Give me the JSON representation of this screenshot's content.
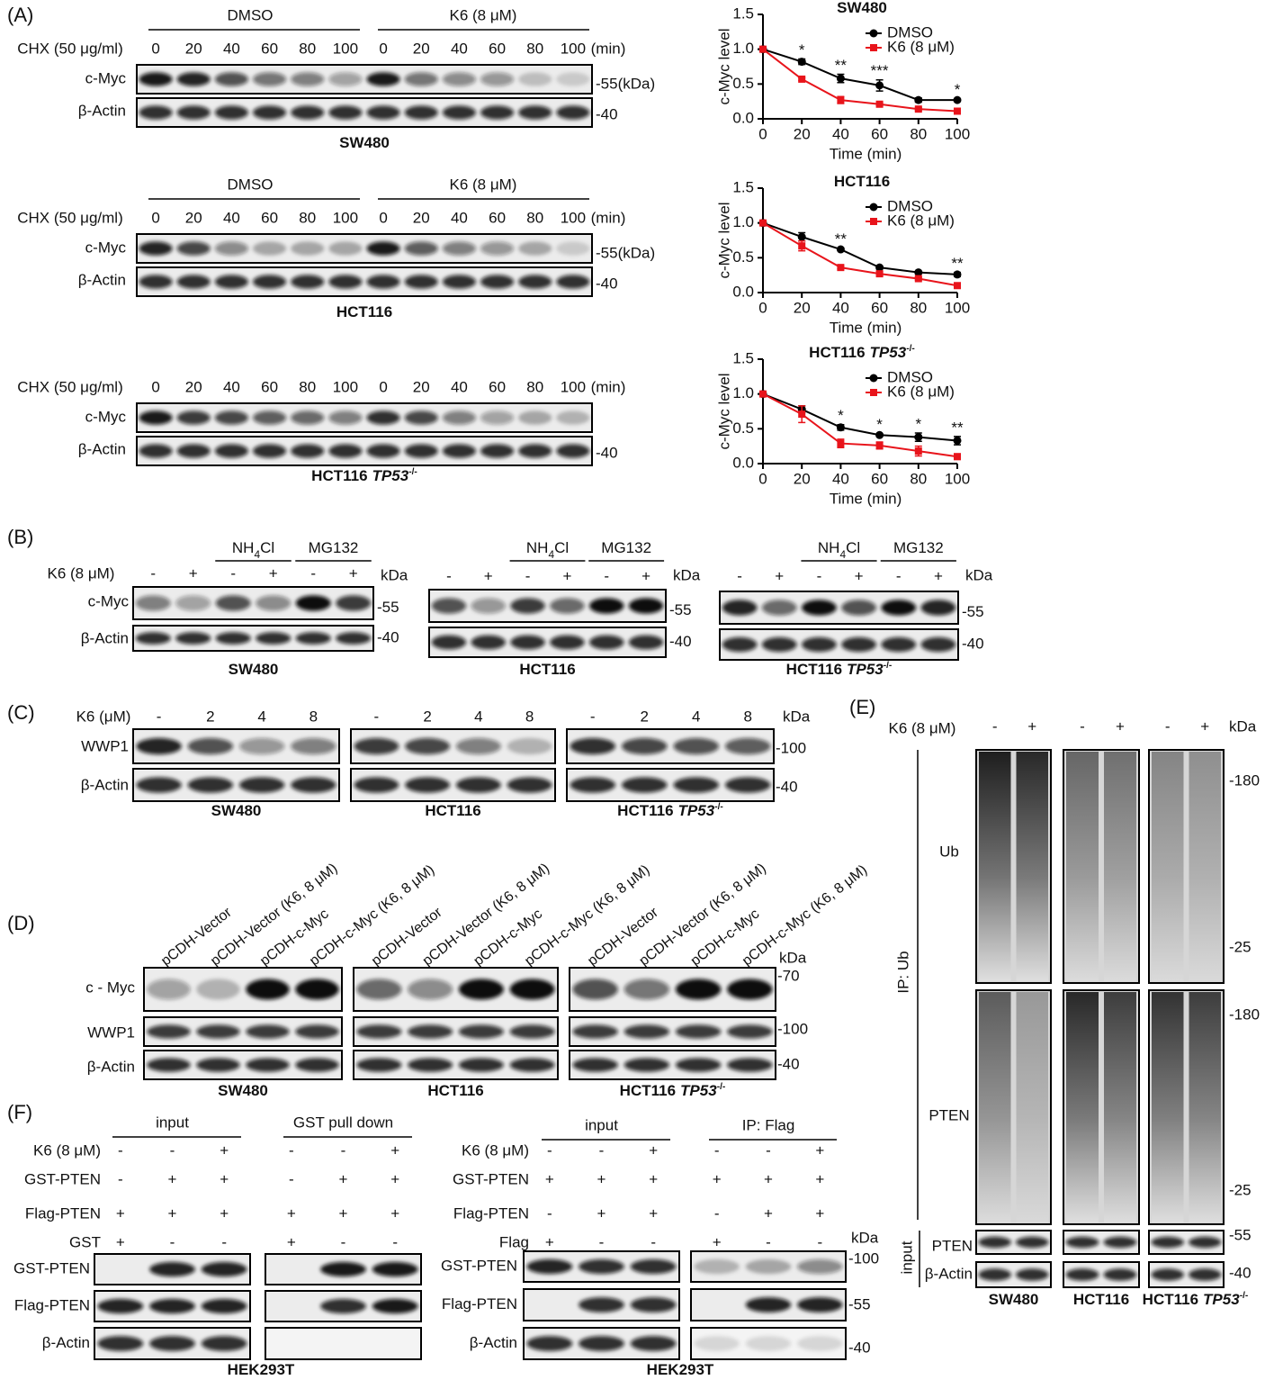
{
  "panel_a": {
    "label": "(A)",
    "blots": [
      {
        "groups": [
          "DMSO",
          "K6 (8 μM)"
        ],
        "treatment": "CHX (50 μg/ml)",
        "lanes": [
          "0",
          "20",
          "40",
          "60",
          "80",
          "100",
          "0",
          "20",
          "40",
          "60",
          "80",
          "100"
        ],
        "unit": "(min)",
        "rows": [
          "c-Myc",
          "β-Actin"
        ],
        "markers": [
          "-55(kDa)",
          "-40"
        ],
        "cell_line": {
          "text": "SW480"
        }
      },
      {
        "groups": [
          "DMSO",
          "K6 (8 μM)"
        ],
        "treatment": "CHX (50 μg/ml)",
        "lanes": [
          "0",
          "20",
          "40",
          "60",
          "80",
          "100",
          "0",
          "20",
          "40",
          "60",
          "80",
          "100"
        ],
        "unit": "(min)",
        "rows": [
          "c-Myc",
          "β-Actin"
        ],
        "markers": [
          "-55(kDa)",
          "-40"
        ],
        "cell_line": {
          "text": "HCT116"
        }
      },
      {
        "treatment": "CHX (50 μg/ml)",
        "lanes": [
          "0",
          "20",
          "40",
          "60",
          "80",
          "100",
          "0",
          "20",
          "40",
          "60",
          "80",
          "100"
        ],
        "unit": "(min)",
        "rows": [
          "c-Myc",
          "β-Actin"
        ],
        "markers": [
          "-40"
        ],
        "cell_line": {
          "text": "HCT116",
          "gene": "TP53",
          "sup": "-/-"
        }
      }
    ]
  },
  "chart_data": [
    {
      "type": "line",
      "title": "SW480",
      "x": [
        0,
        20,
        40,
        60,
        80,
        100
      ],
      "xlim": [
        0,
        100
      ],
      "xticks": [
        0,
        20,
        40,
        60,
        80,
        100
      ],
      "ylim": [
        0,
        1.5
      ],
      "yticks": [
        {
          "value": 0,
          "label": "0.0"
        },
        {
          "value": 0.5,
          "label": "0.5"
        },
        {
          "value": 1,
          "label": "1.0"
        },
        {
          "value": 1.5,
          "label": "1.5"
        }
      ],
      "xlabel": "Time (min)",
      "ylabel": "c-Myc level",
      "series": [
        {
          "name": "DMSO",
          "color": "#000000",
          "values": [
            1.0,
            0.82,
            0.58,
            0.48,
            0.27,
            0.27
          ],
          "errors": [
            0,
            0.04,
            0.06,
            0.08,
            0.03,
            0.02
          ]
        },
        {
          "name": "K6 (8 μM)",
          "color": "#e8141b",
          "values": [
            1.0,
            0.57,
            0.27,
            0.21,
            0.14,
            0.11
          ],
          "errors": [
            0,
            0.02,
            0.05,
            0.02,
            0.02,
            0.01
          ]
        }
      ],
      "annotations": [
        {
          "x": 20,
          "text": "*"
        },
        {
          "x": 40,
          "text": "**"
        },
        {
          "x": 60,
          "text": "***"
        },
        {
          "x": 100,
          "text": "*"
        }
      ]
    },
    {
      "type": "line",
      "title": "HCT116",
      "x": [
        0,
        20,
        40,
        60,
        80,
        100
      ],
      "xlim": [
        0,
        100
      ],
      "xticks": [
        0,
        20,
        40,
        60,
        80,
        100
      ],
      "ylim": [
        0,
        1.5
      ],
      "yticks": [
        {
          "value": 0,
          "label": "0.0"
        },
        {
          "value": 0.5,
          "label": "0.5"
        },
        {
          "value": 1,
          "label": "1.0"
        },
        {
          "value": 1.5,
          "label": "1.5"
        }
      ],
      "xlabel": "Time (min)",
      "ylabel": "c-Myc level",
      "series": [
        {
          "name": "DMSO",
          "color": "#000000",
          "values": [
            1.0,
            0.8,
            0.62,
            0.36,
            0.29,
            0.26
          ],
          "errors": [
            0,
            0.06,
            0.02,
            0.02,
            0.01,
            0.03
          ]
        },
        {
          "name": "K6 (8 μM)",
          "color": "#e8141b",
          "values": [
            1.0,
            0.67,
            0.36,
            0.27,
            0.2,
            0.1
          ],
          "errors": [
            0,
            0.07,
            0.02,
            0.03,
            0.02,
            0.01
          ]
        }
      ],
      "annotations": [
        {
          "x": 40,
          "text": "**"
        },
        {
          "x": 100,
          "text": "**"
        }
      ]
    },
    {
      "type": "line",
      "title": "HCT116",
      "title_gene": "TP53",
      "title_sup": "-/-",
      "x": [
        0,
        20,
        40,
        60,
        80,
        100
      ],
      "xlim": [
        0,
        100
      ],
      "xticks": [
        0,
        20,
        40,
        60,
        80,
        100
      ],
      "ylim": [
        0,
        1.5
      ],
      "yticks": [
        {
          "value": 0,
          "label": "0.0"
        },
        {
          "value": 0.5,
          "label": "0.5"
        },
        {
          "value": 1,
          "label": "1.0"
        },
        {
          "value": 1.5,
          "label": "1.5"
        }
      ],
      "xlabel": "Time (min)",
      "ylabel": "c-Myc level",
      "series": [
        {
          "name": "DMSO",
          "color": "#000000",
          "values": [
            1.0,
            0.78,
            0.52,
            0.41,
            0.38,
            0.33
          ],
          "errors": [
            0,
            0.05,
            0.04,
            0.02,
            0.06,
            0.06
          ]
        },
        {
          "name": "K6 (8 μM)",
          "color": "#e8141b",
          "values": [
            1.0,
            0.71,
            0.29,
            0.26,
            0.18,
            0.1
          ],
          "errors": [
            0,
            0.12,
            0.06,
            0.05,
            0.07,
            0.04
          ]
        }
      ],
      "annotations": [
        {
          "x": 40,
          "text": "*"
        },
        {
          "x": 60,
          "text": "*"
        },
        {
          "x": 80,
          "text": "*"
        },
        {
          "x": 100,
          "text": "**"
        }
      ]
    }
  ],
  "panel_b": {
    "label": "(B)",
    "treatment": "K6 (8 μM)",
    "rows": [
      "c-Myc",
      "β-Actin"
    ],
    "blots": [
      {
        "groups": [
          {
            "text": "NH",
            "sub": "4",
            "tail": "Cl"
          },
          {
            "text": "MG132"
          }
        ],
        "lanes": [
          "-",
          "+",
          "-",
          "+",
          "-",
          "+"
        ],
        "kda": "kDa",
        "markers": [
          "-55",
          "-40"
        ],
        "cell_line": {
          "text": "SW480"
        }
      },
      {
        "groups": [
          {
            "text": "NH",
            "sub": "4",
            "tail": "Cl"
          },
          {
            "text": "MG132"
          }
        ],
        "lanes": [
          "-",
          "+",
          "-",
          "+",
          "-",
          "+"
        ],
        "kda": "kDa",
        "markers": [
          "-55",
          "-40"
        ],
        "cell_line": {
          "text": "HCT116"
        }
      },
      {
        "groups": [
          {
            "text": "NH",
            "sub": "4",
            "tail": "Cl"
          },
          {
            "text": "MG132"
          }
        ],
        "lanes": [
          "-",
          "+",
          "-",
          "+",
          "-",
          "+"
        ],
        "kda": "kDa",
        "markers": [
          "-55",
          "-40"
        ],
        "cell_line": {
          "text": "HCT116",
          "gene": "TP53",
          "sup": "-/-"
        }
      }
    ]
  },
  "panel_c": {
    "label": "(C)",
    "treatment": "K6 (μM)",
    "kda": "kDa",
    "rows": [
      "WWP1",
      "β-Actin"
    ],
    "markers": [
      "-100",
      "-40"
    ],
    "blots": [
      {
        "lanes": [
          "-",
          "2",
          "4",
          "8"
        ],
        "cell_line": {
          "text": "SW480"
        }
      },
      {
        "lanes": [
          "-",
          "2",
          "4",
          "8"
        ],
        "cell_line": {
          "text": "HCT116"
        }
      },
      {
        "lanes": [
          "-",
          "2",
          "4",
          "8"
        ],
        "cell_line": {
          "text": "HCT116",
          "gene": "TP53",
          "sup": "-/-"
        }
      }
    ]
  },
  "panel_d": {
    "label": "(D)",
    "kda": "kDa",
    "rows": [
      "c - Myc",
      "WWP1",
      "β-Actin"
    ],
    "markers": [
      "-70",
      "-100",
      "-40"
    ],
    "blots": [
      {
        "lanes": [
          "pCDH-Vector",
          "pCDH-Vector (K6, 8 μM)",
          "pCDH-c-Myc",
          "pCDH-c-Myc (K6, 8 μM)"
        ],
        "cell_line": {
          "text": "SW480"
        }
      },
      {
        "lanes": [
          "pCDH-Vector",
          "pCDH-Vector (K6, 8 μM)",
          "pCDH-c-Myc",
          "pCDH-c-Myc (K6, 8 μM)"
        ],
        "cell_line": {
          "text": "HCT116"
        }
      },
      {
        "lanes": [
          "pCDH-Vector",
          "pCDH-Vector (K6, 8 μM)",
          "pCDH-c-Myc",
          "pCDH-c-Myc (K6, 8 μM)"
        ],
        "cell_line": {
          "text": "HCT116",
          "gene": "TP53",
          "sup": "-/-"
        }
      }
    ]
  },
  "panel_e": {
    "label": "(E)",
    "treatment": "K6 (8 μM)",
    "kda": "kDa",
    "ip": "IP: Ub",
    "ip_rows": [
      "Ub",
      "PTEN"
    ],
    "input": "input",
    "input_rows": [
      "PTEN",
      "β-Actin"
    ],
    "markers": [
      "-180",
      "-25",
      "-180",
      "-25",
      "-55",
      "-40"
    ],
    "blots": [
      {
        "lanes": [
          "-",
          "+"
        ],
        "cell_line": {
          "text": "SW480"
        }
      },
      {
        "lanes": [
          "-",
          "+"
        ],
        "cell_line": {
          "text": "HCT116"
        }
      },
      {
        "lanes": [
          "-",
          "+"
        ],
        "cell_line": {
          "text": "HCT116",
          "gene": "TP53",
          "sup": "-/-"
        }
      }
    ]
  },
  "panel_f": {
    "label": "(F)",
    "left": {
      "groups": [
        "input",
        "GST pull down"
      ],
      "conditions": [
        {
          "name": "K6 (8 μM)",
          "signs": [
            "-",
            "-",
            "+",
            "-",
            "-",
            "+"
          ]
        },
        {
          "name": "GST-PTEN",
          "signs": [
            "-",
            "+",
            "+",
            "-",
            "+",
            "+"
          ]
        },
        {
          "name": "Flag-PTEN",
          "signs": [
            "+",
            "+",
            "+",
            "+",
            "+",
            "+"
          ]
        },
        {
          "name": "GST",
          "signs": [
            "+",
            "-",
            "-",
            "+",
            "-",
            "-"
          ]
        }
      ],
      "rows": [
        "GST-PTEN",
        "Flag-PTEN",
        "β-Actin"
      ],
      "cell_line": {
        "text": "HEK293T"
      }
    },
    "right": {
      "groups": [
        "input",
        "IP: Flag"
      ],
      "conditions": [
        {
          "name": "K6 (8 μM)",
          "signs": [
            "-",
            "-",
            "+",
            "-",
            "-",
            "+"
          ]
        },
        {
          "name": "GST-PTEN",
          "signs": [
            "+",
            "+",
            "+",
            "+",
            "+",
            "+"
          ]
        },
        {
          "name": "Flag-PTEN",
          "signs": [
            "-",
            "+",
            "+",
            "-",
            "+",
            "+"
          ]
        },
        {
          "name": "Flag",
          "signs": [
            "+",
            "-",
            "-",
            "+",
            "-",
            "-"
          ]
        }
      ],
      "rows": [
        "GST-PTEN",
        "Flag-PTEN",
        "β-Actin"
      ],
      "kda": "kDa",
      "markers": [
        "-100",
        "-55",
        "-40"
      ],
      "cell_line": {
        "text": "HEK293T"
      }
    }
  }
}
